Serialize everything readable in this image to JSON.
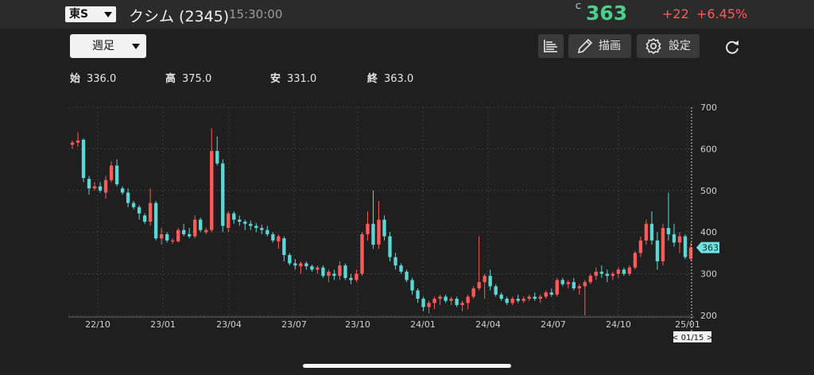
{
  "header": {
    "market": "東S",
    "stock_name": "クシム (2345)",
    "time": "15:30:00",
    "price_flag": "C",
    "price": "363",
    "change": "+22",
    "change_pct": "+6.45%"
  },
  "toolbar": {
    "period": "週足",
    "draw_label": "描画",
    "settings_label": "設定"
  },
  "ohlc": {
    "open_label": "始",
    "open": "336.0",
    "high_label": "高",
    "high": "375.0",
    "low_label": "安",
    "low": "331.0",
    "close_label": "終",
    "close": "363.0"
  },
  "colors": {
    "up": "#ff5a5a",
    "down": "#5fd6d6",
    "accent_green": "#4bd08a"
  },
  "chart_data": {
    "type": "candlestick",
    "y_ticks": [
      "700",
      "600",
      "500",
      "400",
      "300",
      "200"
    ],
    "ylim": [
      200,
      700
    ],
    "x_ticks": [
      "22/10",
      "23/01",
      "23/04",
      "23/07",
      "23/10",
      "24/01",
      "24/04",
      "24/07",
      "24/10",
      "25/01"
    ],
    "last_price_tag": "363",
    "cursor_date": "< 01/15 >",
    "candles_ohlc": [
      [
        610,
        620,
        600,
        615
      ],
      [
        615,
        640,
        605,
        620
      ],
      [
        622,
        625,
        520,
        530
      ],
      [
        528,
        535,
        490,
        505
      ],
      [
        505,
        520,
        500,
        510
      ],
      [
        510,
        520,
        495,
        500
      ],
      [
        495,
        535,
        480,
        525
      ],
      [
        525,
        570,
        520,
        560
      ],
      [
        560,
        575,
        510,
        515
      ],
      [
        505,
        510,
        490,
        495
      ],
      [
        495,
        505,
        460,
        470
      ],
      [
        470,
        475,
        455,
        460
      ],
      [
        460,
        465,
        430,
        445
      ],
      [
        440,
        445,
        420,
        425
      ],
      [
        425,
        505,
        415,
        470
      ],
      [
        470,
        475,
        380,
        385
      ],
      [
        385,
        410,
        370,
        395
      ],
      [
        395,
        400,
        375,
        380
      ],
      [
        378,
        385,
        372,
        380
      ],
      [
        378,
        410,
        375,
        405
      ],
      [
        405,
        420,
        390,
        395
      ],
      [
        395,
        410,
        385,
        390
      ],
      [
        390,
        440,
        385,
        430
      ],
      [
        430,
        435,
        400,
        405
      ],
      [
        400,
        410,
        395,
        405
      ],
      [
        405,
        650,
        400,
        595
      ],
      [
        595,
        630,
        560,
        565
      ],
      [
        565,
        575,
        400,
        415
      ],
      [
        410,
        450,
        400,
        445
      ],
      [
        445,
        450,
        420,
        430
      ],
      [
        430,
        440,
        415,
        425
      ],
      [
        425,
        430,
        405,
        420
      ],
      [
        420,
        428,
        405,
        415
      ],
      [
        415,
        422,
        400,
        410
      ],
      [
        410,
        418,
        395,
        405
      ],
      [
        405,
        415,
        390,
        395
      ],
      [
        395,
        400,
        375,
        380
      ],
      [
        378,
        395,
        360,
        390
      ],
      [
        385,
        390,
        330,
        345
      ],
      [
        345,
        350,
        320,
        325
      ],
      [
        325,
        335,
        310,
        320
      ],
      [
        318,
        330,
        300,
        325
      ],
      [
        325,
        330,
        310,
        318
      ],
      [
        318,
        322,
        305,
        310
      ],
      [
        310,
        320,
        300,
        315
      ],
      [
        315,
        320,
        290,
        295
      ],
      [
        295,
        310,
        280,
        305
      ],
      [
        300,
        310,
        285,
        295
      ],
      [
        295,
        330,
        285,
        320
      ],
      [
        320,
        325,
        285,
        290
      ],
      [
        290,
        300,
        275,
        285
      ],
      [
        285,
        310,
        280,
        300
      ],
      [
        300,
        400,
        295,
        395
      ],
      [
        395,
        450,
        380,
        420
      ],
      [
        420,
        500,
        360,
        370
      ],
      [
        370,
        475,
        360,
        430
      ],
      [
        430,
        440,
        380,
        390
      ],
      [
        390,
        400,
        330,
        340
      ],
      [
        340,
        350,
        310,
        320
      ],
      [
        320,
        325,
        300,
        305
      ],
      [
        305,
        310,
        280,
        285
      ],
      [
        285,
        290,
        250,
        260
      ],
      [
        260,
        265,
        230,
        240
      ],
      [
        240,
        245,
        210,
        220
      ],
      [
        220,
        235,
        205,
        230
      ],
      [
        230,
        245,
        215,
        240
      ],
      [
        240,
        250,
        225,
        245
      ],
      [
        245,
        250,
        230,
        235
      ],
      [
        235,
        245,
        225,
        240
      ],
      [
        240,
        245,
        220,
        225
      ],
      [
        225,
        235,
        210,
        230
      ],
      [
        230,
        250,
        215,
        245
      ],
      [
        245,
        270,
        240,
        265
      ],
      [
        265,
        390,
        260,
        280
      ],
      [
        280,
        300,
        240,
        295
      ],
      [
        295,
        310,
        260,
        270
      ],
      [
        270,
        275,
        245,
        250
      ],
      [
        250,
        255,
        235,
        240
      ],
      [
        240,
        245,
        225,
        230
      ],
      [
        230,
        245,
        225,
        240
      ],
      [
        240,
        250,
        230,
        235
      ],
      [
        235,
        245,
        230,
        240
      ],
      [
        240,
        250,
        235,
        245
      ],
      [
        245,
        255,
        235,
        240
      ],
      [
        240,
        250,
        230,
        245
      ],
      [
        245,
        260,
        240,
        255
      ],
      [
        255,
        265,
        245,
        250
      ],
      [
        250,
        290,
        245,
        285
      ],
      [
        285,
        290,
        270,
        275
      ],
      [
        275,
        285,
        265,
        280
      ],
      [
        280,
        290,
        260,
        265
      ],
      [
        265,
        275,
        250,
        270
      ],
      [
        270,
        285,
        200,
        280
      ],
      [
        280,
        300,
        275,
        295
      ],
      [
        295,
        315,
        285,
        305
      ],
      [
        305,
        320,
        290,
        300
      ],
      [
        300,
        310,
        280,
        295
      ],
      [
        295,
        305,
        285,
        300
      ],
      [
        300,
        315,
        290,
        310
      ],
      [
        310,
        315,
        295,
        300
      ],
      [
        300,
        320,
        295,
        315
      ],
      [
        315,
        355,
        310,
        350
      ],
      [
        350,
        390,
        340,
        380
      ],
      [
        380,
        430,
        370,
        420
      ],
      [
        420,
        450,
        370,
        380
      ],
      [
        380,
        400,
        310,
        330
      ],
      [
        330,
        420,
        320,
        410
      ],
      [
        410,
        495,
        380,
        395
      ],
      [
        395,
        420,
        365,
        375
      ],
      [
        375,
        400,
        350,
        390
      ],
      [
        390,
        395,
        335,
        340
      ],
      [
        336,
        375,
        331,
        363
      ]
    ]
  }
}
